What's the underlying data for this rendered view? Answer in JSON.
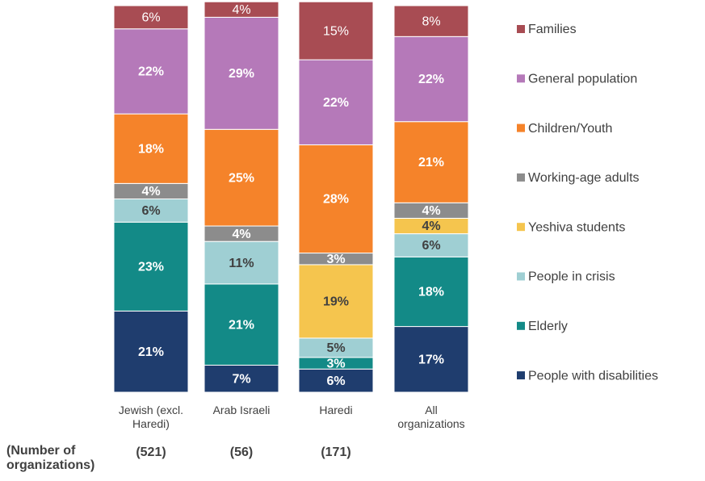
{
  "chart_data": {
    "type": "stacked_bar",
    "categories": [
      "Jewish (excl. Haredi)",
      "Arab Israeli",
      "Haredi",
      "All organizations"
    ],
    "ylim": [
      0,
      100
    ],
    "series": [
      {
        "name": "People with disabilities",
        "color": "#1f3d6e",
        "values": [
          21,
          7,
          6,
          17
        ],
        "value_labels": [
          "21%",
          "7%",
          "6%",
          "17%"
        ]
      },
      {
        "name": "Elderly",
        "color": "#138a87",
        "values": [
          23,
          21,
          3,
          18
        ],
        "value_labels": [
          "23%",
          "21%",
          "3%",
          "18%"
        ]
      },
      {
        "name": "People in crisis",
        "color": "#9fcfd3",
        "values": [
          6,
          11,
          5,
          6
        ],
        "value_labels": [
          "6%",
          "11%",
          "5%",
          "6%"
        ]
      },
      {
        "name": "Yeshiva students",
        "color": "#f5c54e",
        "values": [
          null,
          null,
          19,
          4
        ],
        "value_labels": [
          null,
          null,
          "19%",
          "4%"
        ]
      },
      {
        "name": "Working-age adults",
        "color": "#8c8c8c",
        "values": [
          4,
          4,
          3,
          4
        ],
        "value_labels": [
          "4%",
          "4%",
          "3%",
          "4%"
        ]
      },
      {
        "name": "Children/Youth",
        "color": "#f5832a",
        "values": [
          18,
          25,
          28,
          21
        ],
        "value_labels": [
          "18%",
          "25%",
          "28%",
          "21%"
        ]
      },
      {
        "name": "General population",
        "color": "#b579b9",
        "values": [
          22,
          29,
          22,
          22
        ],
        "value_labels": [
          "22%",
          "29%",
          "22%",
          "22%"
        ]
      },
      {
        "name": "Families",
        "color": "#a84c53",
        "values": [
          6,
          4,
          15,
          8
        ],
        "value_labels": [
          "6%",
          "4%",
          "15%",
          "8%"
        ]
      }
    ],
    "counts_label": "(Number of organizations)",
    "counts": [
      "(521)",
      "(56)",
      "(171)"
    ]
  }
}
